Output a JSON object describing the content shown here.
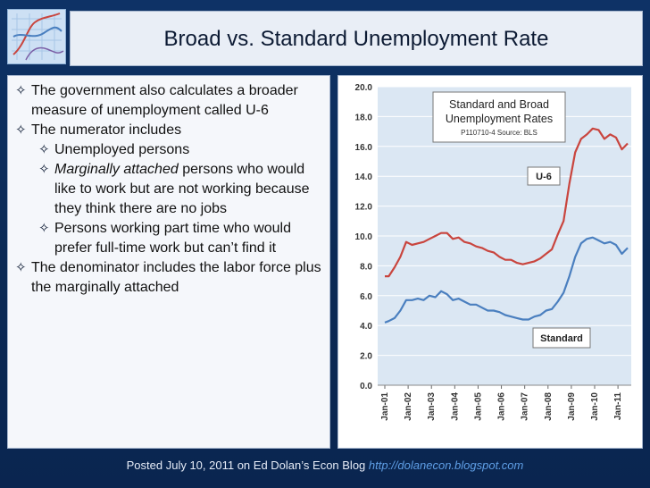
{
  "slide": {
    "title": "Broad vs. Standard Unemployment Rate",
    "bullets": [
      {
        "level": 1,
        "text": "The government also calculates a broader measure of unemployment called U-6"
      },
      {
        "level": 1,
        "text": "The numerator includes"
      },
      {
        "level": 2,
        "text": "Unemployed persons"
      },
      {
        "level": 2,
        "italic_prefix": "Marginally attached",
        "text": " persons who would like to work but are not working because they think there are no jobs"
      },
      {
        "level": 2,
        "text": "Persons working part time who would prefer full-time work but can’t find it"
      },
      {
        "level": 1,
        "text": "The denominator includes the labor force plus the marginally attached"
      }
    ],
    "bullet_icon": "diamond-star-icon",
    "footer": {
      "text": "Posted July 10, 2011 on Ed Dolan’s Econ Blog ",
      "link": "http://dolanecon.blogspot.com"
    }
  },
  "colors": {
    "background": "#0b2a55",
    "u6": "#c9453e",
    "standard": "#4a7fbf",
    "plot_bg": "#dbe7f3",
    "link": "#5f9fe6"
  },
  "chart_data": {
    "type": "line",
    "title": "Standard and Broad Unemployment Rates",
    "subtitle": "P110710-4 Source: BLS",
    "ylim": [
      0,
      20
    ],
    "yticks": [
      "0.0",
      "2.0",
      "4.0",
      "6.0",
      "8.0",
      "10.0",
      "12.0",
      "14.0",
      "16.0",
      "18.0",
      "20.0"
    ],
    "xticks": [
      "Jan-01",
      "Jan-02",
      "Jan-03",
      "Jan-04",
      "Jan-05",
      "Jan-06",
      "Jan-07",
      "Jan-08",
      "Jan-09",
      "Jan-10",
      "Jan-11"
    ],
    "grid": true,
    "series": [
      {
        "name": "U-6",
        "x": [
          "2001-01",
          "2001-03",
          "2001-06",
          "2001-09",
          "2001-12",
          "2002-03",
          "2002-06",
          "2002-09",
          "2002-12",
          "2003-03",
          "2003-06",
          "2003-09",
          "2003-12",
          "2004-03",
          "2004-06",
          "2004-09",
          "2004-12",
          "2005-03",
          "2005-06",
          "2005-09",
          "2005-12",
          "2006-03",
          "2006-06",
          "2006-09",
          "2006-12",
          "2007-03",
          "2007-06",
          "2007-09",
          "2007-12",
          "2008-03",
          "2008-06",
          "2008-09",
          "2008-12",
          "2009-03",
          "2009-06",
          "2009-09",
          "2009-12",
          "2010-03",
          "2010-06",
          "2010-09",
          "2010-12",
          "2011-03",
          "2011-06"
        ],
        "values": [
          7.3,
          7.3,
          7.9,
          8.6,
          9.6,
          9.4,
          9.5,
          9.6,
          9.8,
          10.0,
          10.2,
          10.2,
          9.8,
          9.9,
          9.6,
          9.5,
          9.3,
          9.2,
          9.0,
          8.9,
          8.6,
          8.4,
          8.4,
          8.2,
          8.1,
          8.2,
          8.3,
          8.5,
          8.8,
          9.1,
          10.1,
          11.0,
          13.5,
          15.6,
          16.5,
          16.8,
          17.2,
          17.1,
          16.5,
          16.8,
          16.6,
          15.8,
          16.2
        ]
      },
      {
        "name": "Standard",
        "x": [
          "2001-01",
          "2001-03",
          "2001-06",
          "2001-09",
          "2001-12",
          "2002-03",
          "2002-06",
          "2002-09",
          "2002-12",
          "2003-03",
          "2003-06",
          "2003-09",
          "2003-12",
          "2004-03",
          "2004-06",
          "2004-09",
          "2004-12",
          "2005-03",
          "2005-06",
          "2005-09",
          "2005-12",
          "2006-03",
          "2006-06",
          "2006-09",
          "2006-12",
          "2007-03",
          "2007-06",
          "2007-09",
          "2007-12",
          "2008-03",
          "2008-06",
          "2008-09",
          "2008-12",
          "2009-03",
          "2009-06",
          "2009-09",
          "2009-12",
          "2010-03",
          "2010-06",
          "2010-09",
          "2010-12",
          "2011-03",
          "2011-06"
        ],
        "values": [
          4.2,
          4.3,
          4.5,
          5.0,
          5.7,
          5.7,
          5.8,
          5.7,
          6.0,
          5.9,
          6.3,
          6.1,
          5.7,
          5.8,
          5.6,
          5.4,
          5.4,
          5.2,
          5.0,
          5.0,
          4.9,
          4.7,
          4.6,
          4.5,
          4.4,
          4.4,
          4.6,
          4.7,
          5.0,
          5.1,
          5.6,
          6.2,
          7.3,
          8.6,
          9.5,
          9.8,
          9.9,
          9.7,
          9.5,
          9.6,
          9.4,
          8.8,
          9.2
        ]
      }
    ],
    "annotations": [
      "U-6",
      "Standard"
    ]
  }
}
